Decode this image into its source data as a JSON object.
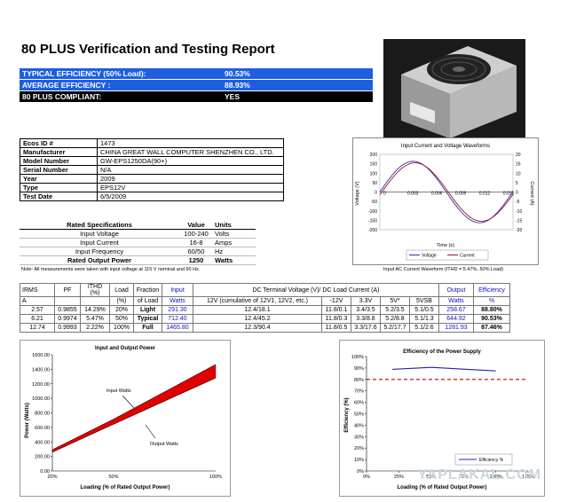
{
  "report": {
    "title": "80 PLUS Verification and Testing Report"
  },
  "summary": [
    {
      "label": "TYPICAL EFFICIENCY (50% Load):",
      "value": "90.53%"
    },
    {
      "label": "AVERAGE EFFICIENCY :",
      "value": "88.93%"
    },
    {
      "label": "80 PLUS COMPLIANT:",
      "value": "YES"
    }
  ],
  "info": [
    {
      "k": "Ecos ID #",
      "v": "1473"
    },
    {
      "k": "Manufacturer",
      "v": "CHINA GREAT WALL COMPUTER SHENZHEN CO., LTD."
    },
    {
      "k": "Model Number",
      "v": "GW-EPS1250DA(90+)"
    },
    {
      "k": "Serial Number",
      "v": "N/A"
    },
    {
      "k": "Year",
      "v": "2009"
    },
    {
      "k": "Type",
      "v": "EPS12V"
    },
    {
      "k": "Test Date",
      "v": "6/5/2009"
    }
  ],
  "rated": {
    "headers": [
      "Rated Specifications",
      "Value",
      "Units"
    ],
    "rows": [
      [
        "Input Voltage",
        "100-240",
        "Volts"
      ],
      [
        "Input Current",
        "16-8",
        "Amps"
      ],
      [
        "Input Frequency",
        "60/50",
        "Hz"
      ]
    ],
    "total": [
      "Rated Output Power",
      "1250",
      "Watts"
    ]
  },
  "note": "Note: All measurements were taken with input voltage at 115 V nominal and 60 Hz.",
  "wave_caption": "Input AC Current Waveform (ITHD = 5.47%, 50% Load)",
  "dc_table": {
    "h_irms": "IRMS",
    "h_irms_unit": "A",
    "h_pf": "PF",
    "h_ithd": "ITHD (%)",
    "h_load": "Load",
    "h_load_unit": "(%)",
    "h_fraction": "Fraction",
    "h_fraction2": "of Load",
    "h_input": "Input",
    "h_input2": "Watts",
    "h_dc": "DC Terminal Voltage (V)/ DC Load Current (A)",
    "h_12v": "12V (cumulative of 12V1, 12V2, etc.)",
    "h_m12v": "-12V",
    "h_33v": "3.3V",
    "h_5v": "5V*",
    "h_5vsb": "5VSB",
    "h_output": "Output",
    "h_output2": "Watts",
    "h_eff": "Efficiency",
    "h_eff2": "%",
    "rows": [
      [
        "2.57",
        "0.9855",
        "14.29%",
        "20%",
        "Light",
        "291.30",
        "12.4/18.1",
        "11.8/0.1",
        "3.4/3.5",
        "5.2/3.5",
        "5.1/0.5",
        "258.67",
        "88.80%"
      ],
      [
        "6.21",
        "0.9974",
        "5.47%",
        "50%",
        "Typical",
        "712.40",
        "12.4/45.2",
        "11.8/0.3",
        "3.3/8.8",
        "5.2/8.8",
        "5.1/1.3",
        "644.92",
        "90.53%"
      ],
      [
        "12.74",
        "0.9993",
        "2.22%",
        "100%",
        "Full",
        "1465.80",
        "12.3/90.4",
        "11.8/0.5",
        "3.3/17.6",
        "5.2/17.7",
        "5.1/2.6",
        "1281.93",
        "87.46%"
      ]
    ]
  },
  "chart_data": [
    {
      "type": "line",
      "title": "Input Current and Voltage Waveforms",
      "xlabel": "Time (s)",
      "ylabel": "Voltage (V)",
      "y2label": "Current (A)",
      "x_ticks": [
        "0",
        "0.003",
        "0.006",
        "0.009",
        "0.012",
        "0.015"
      ],
      "y_ticks": [
        "200",
        "150",
        "100",
        "50",
        "0",
        "-50",
        "-100",
        "-150",
        "-200"
      ],
      "y2_ticks": [
        "20",
        "15",
        "10",
        "5",
        "0",
        "-5",
        "-10",
        "-15",
        "-20"
      ],
      "ylim": [
        -200,
        200
      ],
      "y2lim": [
        -20,
        20
      ],
      "xlim": [
        0,
        0.0167
      ],
      "series": [
        {
          "name": "Voltage",
          "color": "#3030a0",
          "amplitude": 163,
          "frequency_hz": 60
        },
        {
          "name": "Current",
          "color": "#a01030",
          "amplitude": 15.5,
          "frequency_hz": 60
        }
      ],
      "legend": "bottom"
    },
    {
      "type": "area",
      "title": "Input and Output Power",
      "xlabel": "Loading (% of Rated Output Power)",
      "ylabel": "Power (Watts)",
      "x_ticks": [
        "20%",
        "50%",
        "100%"
      ],
      "y_ticks": [
        "0.00",
        "200.00",
        "400.00",
        "600.00",
        "800.00",
        "1000.00",
        "1200.00",
        "1400.00",
        "1600.00"
      ],
      "ylim": [
        0,
        1600
      ],
      "x": [
        20,
        50,
        100
      ],
      "series": [
        {
          "name": "Input Watts",
          "values": [
            291.3,
            712.4,
            1465.8
          ]
        },
        {
          "name": "Output Watts",
          "values": [
            258.67,
            644.92,
            1281.93
          ]
        }
      ],
      "annotations": [
        "Input Watts",
        "Output Watts"
      ],
      "fill_color": "#e00000"
    },
    {
      "type": "line",
      "title": "Efficiency of the Power Supply",
      "xlabel": "Loading (% of Rated Output Power)",
      "ylabel": "Efficiency (%)",
      "x_ticks": [
        "0%",
        "25%",
        "50%",
        "75%",
        "100%",
        "125%"
      ],
      "y_ticks": [
        "100%",
        "90%",
        "80%",
        "70%",
        "60%",
        "50%",
        "40%",
        "30%",
        "20%",
        "10%",
        "0%"
      ],
      "ylim": [
        0,
        100
      ],
      "xlim": [
        0,
        125
      ],
      "series": [
        {
          "name": "Efficiency %",
          "x": [
            20,
            50,
            100
          ],
          "values": [
            88.8,
            90.53,
            87.46
          ],
          "color": "#2020b0"
        }
      ],
      "threshold": 80,
      "threshold_color": "#c00000",
      "legend": "bottom-right"
    }
  ],
  "watermark": "YAPLAKAL.COM"
}
